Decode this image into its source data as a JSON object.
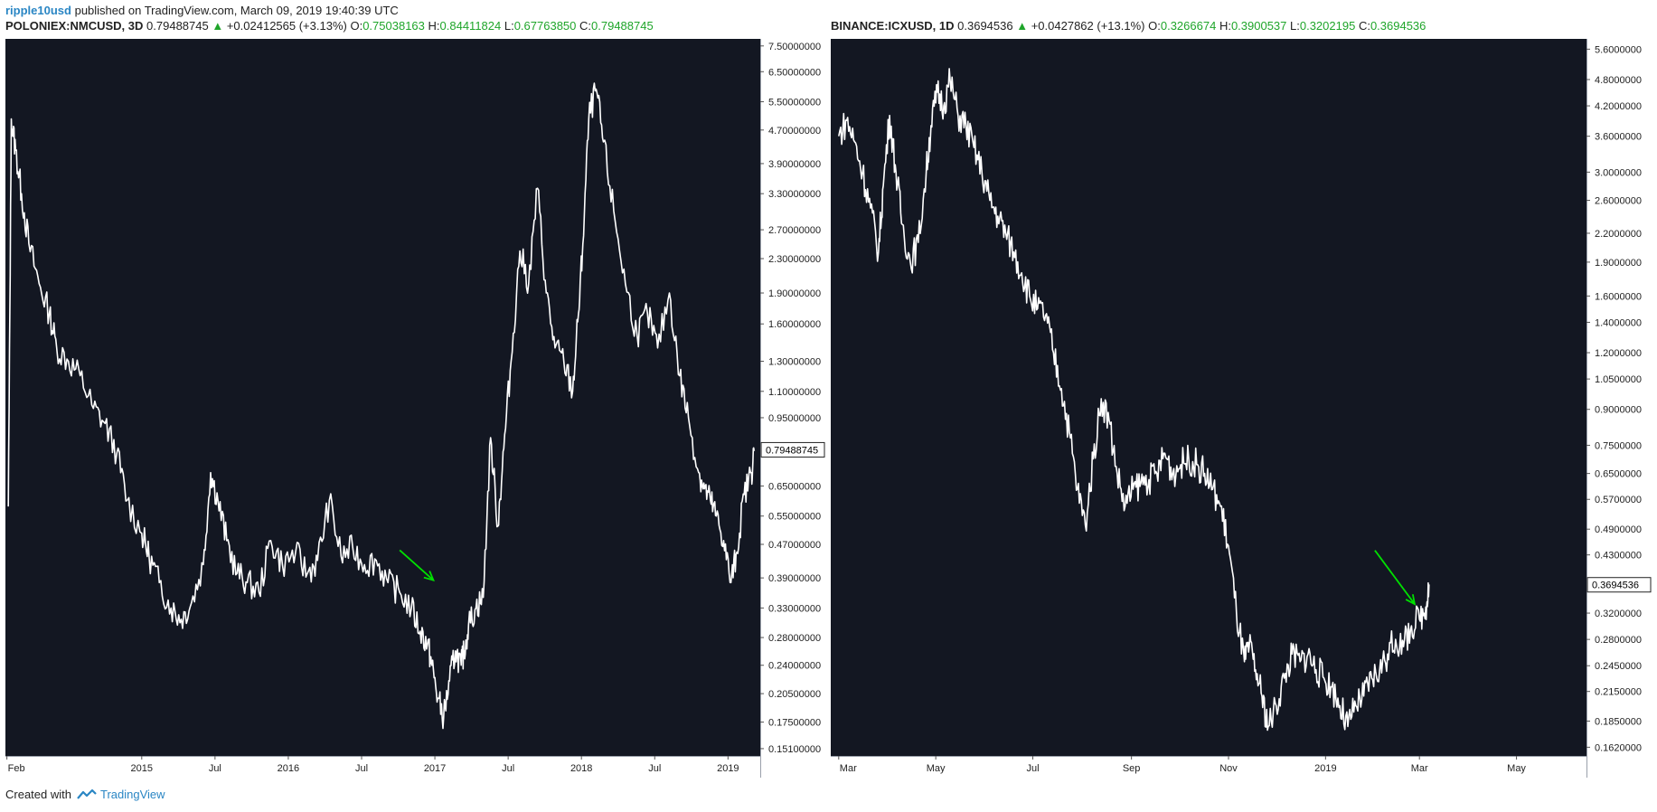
{
  "header": {
    "author": "ripple10usd",
    "published": "published on TradingView.com, March 09, 2019 19:40:39 UTC"
  },
  "footer": {
    "created_with": "Created with",
    "brand": "TradingView"
  },
  "colors": {
    "background": "#131722",
    "line": "#ffffff",
    "up": "#1fa52a",
    "arrow": "#00e000"
  },
  "chart_data": [
    {
      "type": "line",
      "symbol": "POLONIEX:NMCUSD, 3D",
      "last": "0.79488745",
      "change": "+0.02412565 (+3.13%)",
      "ohlc": {
        "O": "0.75038163",
        "H": "0.84411824",
        "L": "0.67763850",
        "C": "0.79488745"
      },
      "scale": "log",
      "yticks": [
        "7.50000000",
        "6.50000000",
        "5.50000000",
        "4.70000000",
        "3.90000000",
        "3.30000000",
        "2.70000000",
        "2.30000000",
        "1.90000000",
        "1.60000000",
        "1.30000000",
        "1.10000000",
        "0.95000000",
        "0.65000000",
        "0.55000000",
        "0.47000000",
        "0.39000000",
        "0.33000000",
        "0.28000000",
        "0.24000000",
        "0.20500000",
        "0.17500000",
        "0.15100000"
      ],
      "ylim": [
        0.145,
        7.8
      ],
      "price_label": "0.79488745",
      "xticks": [
        {
          "label": "Feb",
          "x": 2014.08
        },
        {
          "label": "2015",
          "x": 2015.0
        },
        {
          "label": "Jul",
          "x": 2015.5
        },
        {
          "label": "2016",
          "x": 2016.0
        },
        {
          "label": "Jul",
          "x": 2016.5
        },
        {
          "label": "2017",
          "x": 2017.0
        },
        {
          "label": "Jul",
          "x": 2017.5
        },
        {
          "label": "2018",
          "x": 2018.0
        },
        {
          "label": "Jul",
          "x": 2018.5
        },
        {
          "label": "2019",
          "x": 2019.0
        }
      ],
      "xlim": [
        2014.07,
        2019.22
      ],
      "x": [
        2014.09,
        2014.11,
        2014.14,
        2014.18,
        2014.23,
        2014.3,
        2014.37,
        2014.42,
        2014.5,
        2014.58,
        2014.67,
        2014.75,
        2014.83,
        2014.9,
        2015.0,
        2015.05,
        2015.12,
        2015.2,
        2015.27,
        2015.34,
        2015.42,
        2015.47,
        2015.52,
        2015.58,
        2015.65,
        2015.72,
        2015.8,
        2015.88,
        2015.96,
        2016.05,
        2016.13,
        2016.2,
        2016.28,
        2016.36,
        2016.44,
        2016.52,
        2016.6,
        2016.68,
        2016.76,
        2016.84,
        2016.9,
        2016.95,
        2016.98,
        2017.02,
        2017.06,
        2017.1,
        2017.14,
        2017.18,
        2017.2,
        2017.23,
        2017.28,
        2017.33,
        2017.38,
        2017.43,
        2017.47,
        2017.52,
        2017.58,
        2017.64,
        2017.7,
        2017.76,
        2017.82,
        2017.88,
        2017.94,
        2017.98,
        2018.01,
        2018.05,
        2018.1,
        2018.15,
        2018.22,
        2018.3,
        2018.38,
        2018.45,
        2018.52,
        2018.6,
        2018.67,
        2018.73,
        2018.8,
        2018.84,
        2018.88,
        2018.92,
        2018.97,
        2019.02,
        2019.06,
        2019.11,
        2019.16,
        2019.18
      ],
      "y": [
        0.58,
        5.0,
        4.2,
        3.3,
        2.5,
        2.0,
        1.7,
        1.4,
        1.3,
        1.2,
        1.0,
        0.92,
        0.78,
        0.6,
        0.5,
        0.44,
        0.38,
        0.33,
        0.31,
        0.34,
        0.42,
        0.7,
        0.6,
        0.48,
        0.4,
        0.38,
        0.36,
        0.48,
        0.42,
        0.45,
        0.4,
        0.43,
        0.6,
        0.44,
        0.46,
        0.42,
        0.43,
        0.38,
        0.36,
        0.33,
        0.29,
        0.27,
        0.24,
        0.2,
        0.18,
        0.22,
        0.26,
        0.24,
        0.26,
        0.3,
        0.33,
        0.35,
        0.85,
        0.52,
        0.8,
        1.3,
        2.4,
        2.0,
        3.4,
        1.9,
        1.4,
        1.3,
        1.1,
        1.7,
        2.5,
        5.0,
        5.9,
        4.4,
        3.0,
        2.0,
        1.5,
        1.7,
        1.4,
        1.9,
        1.2,
        0.95,
        0.7,
        0.64,
        0.6,
        0.55,
        0.48,
        0.38,
        0.45,
        0.62,
        0.7,
        0.79
      ],
      "arrow": {
        "from": [
          2016.76,
          0.455
        ],
        "to": [
          2016.99,
          0.385
        ]
      }
    },
    {
      "type": "line",
      "symbol": "BINANCE:ICXUSD, 1D",
      "last": "0.3694536",
      "change": "+0.0427862 (+13.1%)",
      "ohlc": {
        "O": "0.3266674",
        "H": "0.3900537",
        "L": "0.3202195",
        "C": "0.3694536"
      },
      "scale": "log",
      "yticks": [
        "5.6000000",
        "4.8000000",
        "4.2000000",
        "3.6000000",
        "3.0000000",
        "2.6000000",
        "2.2000000",
        "1.9000000",
        "1.6000000",
        "1.4000000",
        "1.2000000",
        "1.0500000",
        "0.9000000",
        "0.7500000",
        "0.6500000",
        "0.5700000",
        "0.4900000",
        "0.4300000",
        "0.3200000",
        "0.2800000",
        "0.2450000",
        "0.2150000",
        "0.1850000",
        "0.1620000"
      ],
      "ylim": [
        0.155,
        5.9
      ],
      "price_label": "0.3694536",
      "xticks": [
        {
          "label": "Mar",
          "x": 0
        },
        {
          "label": "May",
          "x": 61
        },
        {
          "label": "Jul",
          "x": 122
        },
        {
          "label": "Sep",
          "x": 184
        },
        {
          "label": "Nov",
          "x": 245
        },
        {
          "label": "2019",
          "x": 306
        },
        {
          "label": "Mar",
          "x": 365
        },
        {
          "label": "May",
          "x": 426
        }
      ],
      "xlim": [
        -5,
        470
      ],
      "x": [
        0,
        5,
        10,
        15,
        20,
        25,
        28,
        32,
        36,
        40,
        45,
        50,
        55,
        58,
        62,
        66,
        70,
        75,
        80,
        85,
        90,
        95,
        100,
        105,
        110,
        115,
        120,
        125,
        130,
        135,
        140,
        145,
        150,
        155,
        160,
        165,
        170,
        175,
        180,
        185,
        190,
        195,
        200,
        205,
        210,
        215,
        220,
        225,
        230,
        235,
        240,
        245,
        250,
        255,
        258,
        262,
        266,
        270,
        275,
        280,
        285,
        290,
        295,
        300,
        305,
        310,
        315,
        320,
        325,
        330,
        335,
        340,
        345,
        350,
        355,
        360,
        365,
        369,
        371
      ],
      "y": [
        3.6,
        3.9,
        3.5,
        3.0,
        2.5,
        2.0,
        2.8,
        4.0,
        3.0,
        2.3,
        1.9,
        2.1,
        3.0,
        3.8,
        4.5,
        4.2,
        4.8,
        4.0,
        3.8,
        3.4,
        3.0,
        2.6,
        2.4,
        2.2,
        2.0,
        1.8,
        1.6,
        1.5,
        1.45,
        1.2,
        1.0,
        0.8,
        0.6,
        0.5,
        0.7,
        0.95,
        0.85,
        0.65,
        0.55,
        0.6,
        0.62,
        0.63,
        0.65,
        0.72,
        0.65,
        0.68,
        0.7,
        0.68,
        0.65,
        0.6,
        0.55,
        0.45,
        0.32,
        0.25,
        0.27,
        0.24,
        0.21,
        0.18,
        0.2,
        0.23,
        0.26,
        0.25,
        0.26,
        0.24,
        0.23,
        0.22,
        0.2,
        0.18,
        0.2,
        0.21,
        0.23,
        0.24,
        0.26,
        0.28,
        0.27,
        0.3,
        0.31,
        0.33,
        0.37
      ],
      "arrow": {
        "from": [
          337,
          0.44
        ],
        "to": [
          362,
          0.335
        ]
      }
    }
  ]
}
